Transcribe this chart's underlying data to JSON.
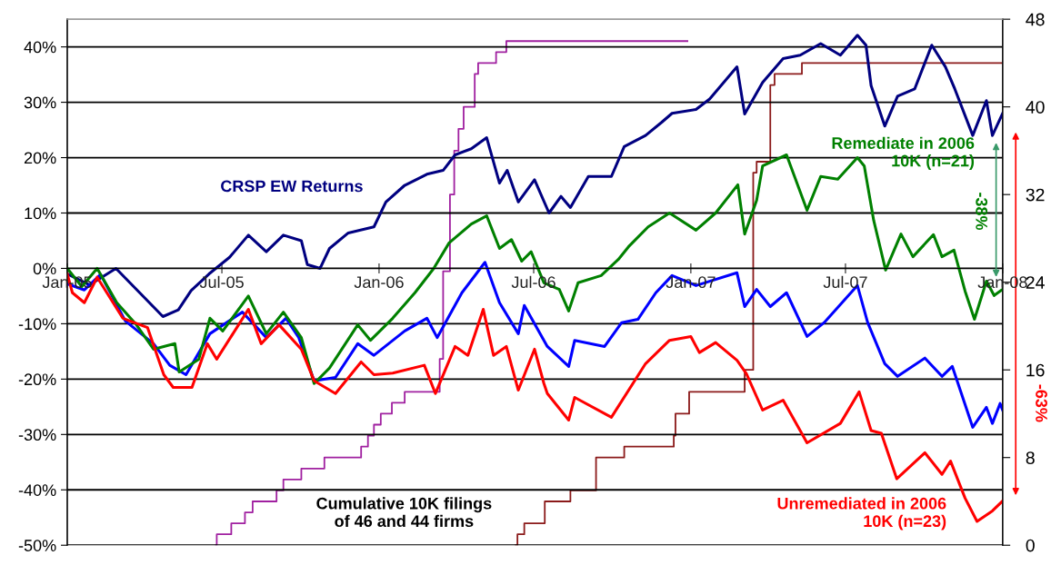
{
  "chart_data": {
    "type": "line",
    "xlim": [
      "2005-01-01",
      "2008-01-01"
    ],
    "xticks": [
      {
        "value": "2005-01-01",
        "label": "Jan-05"
      },
      {
        "value": "2005-07-01",
        "label": "Jul-05"
      },
      {
        "value": "2006-01-01",
        "label": "Jan-06"
      },
      {
        "value": "2006-07-01",
        "label": "Jul-06"
      },
      {
        "value": "2007-01-01",
        "label": "Jan-07"
      },
      {
        "value": "2007-07-01",
        "label": "Jul-07"
      },
      {
        "value": "2008-01-01",
        "label": "Jan-08"
      }
    ],
    "ylim": [
      -50,
      45
    ],
    "yticks": [
      {
        "value": -50,
        "label": "-50%"
      },
      {
        "value": -40,
        "label": "-40%"
      },
      {
        "value": -30,
        "label": "-30%"
      },
      {
        "value": -20,
        "label": "-20%"
      },
      {
        "value": -10,
        "label": "-10%"
      },
      {
        "value": 0,
        "label": "0%"
      },
      {
        "value": 10,
        "label": "10%"
      },
      {
        "value": 20,
        "label": "20%"
      },
      {
        "value": 30,
        "label": "30%"
      },
      {
        "value": 40,
        "label": "40%"
      }
    ],
    "y2lim": [
      0,
      48
    ],
    "y2ticks": [
      0,
      8,
      16,
      24,
      32,
      40,
      48
    ],
    "grid": "y",
    "legend": false,
    "annotations": [
      "Cumulative 10K filings\nof 46 and 44 firms",
      "-38%",
      "-63%"
    ],
    "series": [
      {
        "name": "CRSP EW Returns",
        "color": "#000080",
        "x": [
          "2005-01-01",
          "2005-01-27",
          "2005-02-27",
          "2005-04-23",
          "2005-05-11",
          "2005-05-26",
          "2005-06-16",
          "2005-07-10",
          "2005-08-01",
          "2005-08-22",
          "2005-09-11",
          "2005-10-02",
          "2005-10-09",
          "2005-10-24",
          "2005-11-04",
          "2005-11-26",
          "2005-12-26",
          "2006-01-09",
          "2006-01-31",
          "2006-02-26",
          "2006-03-17",
          "2006-03-31",
          "2006-04-19",
          "2006-05-07",
          "2006-05-22",
          "2006-05-31",
          "2006-06-13",
          "2006-07-02",
          "2006-07-19",
          "2006-08-02",
          "2006-08-13",
          "2006-09-03",
          "2006-09-30",
          "2006-10-15",
          "2006-11-09",
          "2006-11-28",
          "2006-12-10",
          "2007-01-07",
          "2007-01-23",
          "2007-02-24",
          "2007-03-05",
          "2007-03-26",
          "2007-04-19",
          "2007-05-09",
          "2007-06-02",
          "2007-06-25",
          "2007-07-15",
          "2007-07-25",
          "2007-07-31",
          "2007-08-16",
          "2007-08-31",
          "2007-09-20",
          "2007-10-10",
          "2007-10-26",
          "2007-11-06",
          "2007-11-27",
          "2007-12-13",
          "2007-12-20",
          "2008-01-01"
        ],
        "values": [
          -1,
          -3,
          0,
          -8.7,
          -7.5,
          -4,
          -1,
          2,
          6,
          3,
          6,
          5,
          0.7,
          0,
          3.6,
          6.4,
          7.5,
          12,
          15,
          17,
          17.7,
          20.5,
          21.6,
          23.6,
          15.4,
          17.7,
          12,
          16,
          10,
          13,
          11,
          16.6,
          16.6,
          22,
          24,
          26.4,
          28,
          28.7,
          30.6,
          36.4,
          27.9,
          33.6,
          37.9,
          38.5,
          40.6,
          38.5,
          42.1,
          40.3,
          33,
          25.7,
          31.1,
          32.4,
          40.3,
          36.4,
          32.4,
          24,
          30.3,
          24,
          28
        ]
      },
      {
        "color": "#0000ff",
        "x": [
          "2005-01-01",
          "2005-01-21",
          "2005-02-09",
          "2005-03-10",
          "2005-04-12",
          "2005-05-01",
          "2005-05-20",
          "2005-06-17",
          "2005-07-25",
          "2005-08-22",
          "2005-09-14",
          "2005-09-29",
          "2005-10-17",
          "2005-11-11",
          "2005-12-07",
          "2005-12-26",
          "2006-01-31",
          "2006-02-26",
          "2006-03-10",
          "2006-04-08",
          "2006-05-05",
          "2006-05-22",
          "2006-06-13",
          "2006-06-20",
          "2006-07-17",
          "2006-08-11",
          "2006-08-18",
          "2006-09-22",
          "2006-10-12",
          "2006-10-31",
          "2006-11-21",
          "2006-12-10",
          "2007-01-07",
          "2007-02-24",
          "2007-03-05",
          "2007-03-19",
          "2007-04-04",
          "2007-04-23",
          "2007-05-17",
          "2007-06-06",
          "2007-07-15",
          "2007-07-27",
          "2007-08-16",
          "2007-08-31",
          "2007-10-02",
          "2007-10-22",
          "2007-11-03",
          "2007-11-27",
          "2007-12-13",
          "2007-12-20",
          "2007-12-29",
          "2008-01-01"
        ],
        "values": [
          -2.8,
          -3.9,
          -1.1,
          -9.5,
          -13.6,
          -17.5,
          -19.2,
          -11.8,
          -7.9,
          -12.5,
          -9,
          -12.5,
          -20.3,
          -19.7,
          -13.6,
          -15.7,
          -11.3,
          -9,
          -12.5,
          -4.4,
          1.1,
          -6.2,
          -11.8,
          -6.7,
          -14.1,
          -17.7,
          -13,
          -14.1,
          -9.8,
          -9.2,
          -4.4,
          -1.3,
          -3.1,
          -0.8,
          -6.9,
          -3.8,
          -6.9,
          -4.4,
          -12.3,
          -9.8,
          -3.1,
          -9.8,
          -17.2,
          -19.5,
          -16.2,
          -19.5,
          -17.7,
          -28.7,
          -25.1,
          -28,
          -24.4,
          -25.6
        ]
      },
      {
        "name": "Remediate in 2006 10K (n=21)",
        "color": "#008000",
        "x": [
          "2005-01-01",
          "2005-01-18",
          "2005-02-05",
          "2005-02-28",
          "2005-03-22",
          "2005-04-12",
          "2005-05-07",
          "2005-05-12",
          "2005-06-04",
          "2005-06-17",
          "2005-07-02",
          "2005-08-01",
          "2005-08-22",
          "2005-09-11",
          "2005-10-02",
          "2005-10-17",
          "2005-11-04",
          "2005-12-07",
          "2005-12-22",
          "2006-01-17",
          "2006-02-12",
          "2006-03-06",
          "2006-03-24",
          "2006-04-19",
          "2006-05-07",
          "2006-05-22",
          "2006-06-05",
          "2006-06-17",
          "2006-06-28",
          "2006-07-13",
          "2006-07-31",
          "2006-08-11",
          "2006-08-22",
          "2006-09-18",
          "2006-10-08",
          "2006-10-20",
          "2006-11-12",
          "2006-12-07",
          "2007-01-07",
          "2007-01-30",
          "2007-02-25",
          "2007-03-05",
          "2007-03-19",
          "2007-03-26",
          "2007-04-23",
          "2007-05-17",
          "2007-06-02",
          "2007-06-22",
          "2007-07-15",
          "2007-07-23",
          "2007-08-03",
          "2007-08-17",
          "2007-09-04",
          "2007-09-18",
          "2007-10-12",
          "2007-10-22",
          "2007-11-05",
          "2007-11-18",
          "2007-11-29",
          "2007-12-13",
          "2007-12-22",
          "2008-01-01"
        ],
        "values": [
          0,
          -3.3,
          0,
          -6.2,
          -10,
          -14.6,
          -13.6,
          -18.7,
          -16.4,
          -9,
          -11.3,
          -5,
          -11.8,
          -7.9,
          -12.5,
          -20.8,
          -18,
          -10.2,
          -13,
          -9,
          -4.4,
          0,
          4.6,
          8,
          9.5,
          3.6,
          5.2,
          1.3,
          3,
          -2.6,
          -3.8,
          -7.7,
          -2.6,
          -1.3,
          1.6,
          3.9,
          7.5,
          10,
          6.9,
          10,
          15.1,
          6.2,
          12.3,
          18.5,
          20.5,
          10.5,
          16.6,
          16.1,
          20,
          18.5,
          8.7,
          -0.3,
          6.2,
          2.1,
          6.1,
          2.1,
          3.3,
          -4.1,
          -9.2,
          -2.3,
          -4.9,
          -3.8
        ]
      },
      {
        "name": "Unremediated in 2006 10K (n=23)",
        "color": "#ff0000",
        "x": [
          "2005-01-01",
          "2005-01-07",
          "2005-01-21",
          "2005-02-05",
          "2005-03-07",
          "2005-04-05",
          "2005-04-24",
          "2005-05-05",
          "2005-05-27",
          "2005-06-14",
          "2005-06-25",
          "2005-08-01",
          "2005-08-16",
          "2005-09-06",
          "2005-10-02",
          "2005-10-17",
          "2005-11-11",
          "2005-12-11",
          "2005-12-26",
          "2006-01-17",
          "2006-02-23",
          "2006-03-08",
          "2006-03-31",
          "2006-04-15",
          "2006-05-03",
          "2006-05-15",
          "2006-05-30",
          "2006-06-13",
          "2006-07-02",
          "2006-07-13",
          "2006-07-17",
          "2006-08-11",
          "2006-08-18",
          "2006-09-30",
          "2006-11-09",
          "2006-12-07",
          "2007-01-01",
          "2007-01-11",
          "2007-01-30",
          "2007-02-24",
          "2007-03-07",
          "2007-03-26",
          "2007-04-19",
          "2007-05-17",
          "2007-06-25",
          "2007-07-17",
          "2007-07-31",
          "2007-08-12",
          "2007-08-30",
          "2007-10-02",
          "2007-10-22",
          "2007-11-01",
          "2007-11-18",
          "2007-12-02",
          "2007-12-20",
          "2008-01-01"
        ],
        "values": [
          -1,
          -4.4,
          -6.2,
          -1.6,
          -9,
          -10.7,
          -19.2,
          -21.5,
          -21.5,
          -13.6,
          -16.4,
          -7.4,
          -13.6,
          -10.2,
          -14.6,
          -20.3,
          -22.6,
          -16.9,
          -19.2,
          -18.9,
          -17.5,
          -22.6,
          -14.1,
          -15.7,
          -7.4,
          -15.7,
          -14.1,
          -22,
          -14.6,
          -20.8,
          -22.6,
          -27.4,
          -23.3,
          -26.9,
          -17.2,
          -13,
          -12.3,
          -15.2,
          -13.4,
          -16.6,
          -19,
          -25.6,
          -23.8,
          -31.5,
          -28,
          -22.3,
          -29.3,
          -29.8,
          -38,
          -33.3,
          -37.2,
          -34.8,
          -41.5,
          -45.7,
          -43.8,
          -42
        ]
      },
      {
        "type": "step",
        "axis": "y2",
        "color": "#a020a0",
        "x": [
          "2005-06-24",
          "2005-06-25",
          "2005-07-12",
          "2005-07-28",
          "2005-08-06",
          "2005-09-03",
          "2005-09-11",
          "2005-10-02",
          "2005-10-29",
          "2005-12-11",
          "2005-12-19",
          "2005-12-26",
          "2006-01-03",
          "2006-01-16",
          "2006-01-31",
          "2006-03-13",
          "2006-03-17",
          "2006-03-25",
          "2006-03-30",
          "2006-04-04",
          "2006-04-10",
          "2006-04-23",
          "2006-04-27",
          "2006-05-18",
          "2006-05-30",
          "2006-12-28"
        ],
        "values": [
          0,
          1,
          2,
          3,
          4,
          5,
          6,
          7,
          8,
          9,
          10,
          11,
          12,
          13,
          14,
          17,
          25,
          32,
          36,
          38,
          40,
          43,
          44,
          45,
          46,
          46
        ]
      },
      {
        "type": "step",
        "axis": "y2",
        "color": "#8b1a1a",
        "x": [
          "2006-06-10",
          "2006-06-12",
          "2006-06-20",
          "2006-07-14",
          "2006-08-13",
          "2006-09-12",
          "2006-10-15",
          "2006-12-12",
          "2006-12-14",
          "2006-12-30",
          "2007-03-05",
          "2007-03-15",
          "2007-03-19",
          "2007-04-04",
          "2007-04-09",
          "2007-05-11",
          "2008-01-01"
        ],
        "values": [
          0,
          1,
          2,
          4,
          5,
          8,
          9,
          10,
          12,
          14,
          16,
          34,
          35,
          42,
          43,
          44,
          44
        ]
      }
    ]
  }
}
